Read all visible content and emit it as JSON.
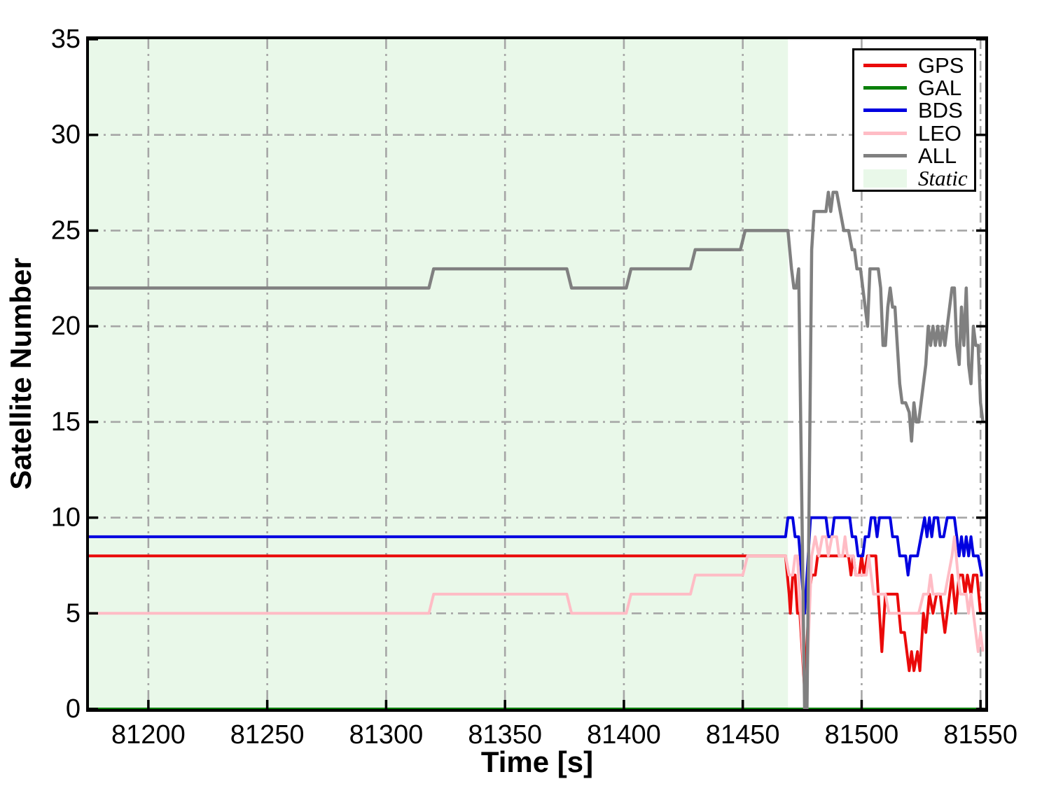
{
  "chart_data": {
    "type": "line",
    "xlabel": "Time [s]",
    "ylabel": "Satellite Number",
    "xlim": [
      81175,
      81552
    ],
    "ylim": [
      0,
      35
    ],
    "xticks": [
      81200,
      81250,
      81300,
      81350,
      81400,
      81450,
      81500,
      81550
    ],
    "yticks": [
      0,
      5,
      10,
      15,
      20,
      25,
      30,
      35
    ],
    "grid": {
      "on": true,
      "style": "dash-dot",
      "color": "#a6a6a6"
    },
    "static_region": {
      "label": "Static",
      "x_start": 81175,
      "x_end": 81469,
      "color": "#e9f8e9"
    },
    "legend_position": "top-right",
    "series": [
      {
        "name": "GPS",
        "color": "#ea0a0a",
        "width": 4,
        "points": [
          [
            81175,
            8
          ],
          [
            81468,
            8
          ],
          [
            81469.5,
            6
          ],
          [
            81470,
            5
          ],
          [
            81471,
            7
          ],
          [
            81472,
            7
          ],
          [
            81473,
            5
          ],
          [
            81474,
            5
          ],
          [
            81476,
            1
          ],
          [
            81478,
            6
          ],
          [
            81479,
            7
          ],
          [
            81480.5,
            7
          ],
          [
            81481.5,
            8
          ],
          [
            81494.5,
            8
          ],
          [
            81495.5,
            7
          ],
          [
            81496.5,
            8
          ],
          [
            81497.5,
            7
          ],
          [
            81499,
            7
          ],
          [
            81500,
            8
          ],
          [
            81501,
            7
          ],
          [
            81502.5,
            8
          ],
          [
            81506,
            8
          ],
          [
            81507.5,
            5
          ],
          [
            81508.5,
            3
          ],
          [
            81510,
            6
          ],
          [
            81515,
            6
          ],
          [
            81516.5,
            4
          ],
          [
            81518,
            4
          ],
          [
            81519,
            3
          ],
          [
            81520,
            2
          ],
          [
            81521,
            3
          ],
          [
            81522,
            2
          ],
          [
            81523.5,
            3
          ],
          [
            81524.5,
            2
          ],
          [
            81526,
            5
          ],
          [
            81527,
            4
          ],
          [
            81528.5,
            6
          ],
          [
            81530,
            5
          ],
          [
            81531.5,
            6
          ],
          [
            81533,
            6
          ],
          [
            81534,
            5
          ],
          [
            81535,
            4
          ],
          [
            81537,
            6
          ],
          [
            81538,
            7
          ],
          [
            81539.5,
            5
          ],
          [
            81541,
            7
          ],
          [
            81542.5,
            7
          ],
          [
            81543.5,
            6
          ],
          [
            81544.5,
            7
          ],
          [
            81546,
            6
          ],
          [
            81547,
            7
          ],
          [
            81548.5,
            7
          ],
          [
            81550,
            5
          ],
          [
            81551,
            5
          ]
        ]
      },
      {
        "name": "GAL",
        "color": "#0a800a",
        "width": 4,
        "points": [
          [
            81175,
            0
          ],
          [
            81551,
            0
          ]
        ]
      },
      {
        "name": "BDS",
        "color": "#0000e0",
        "width": 4,
        "points": [
          [
            81175,
            9
          ],
          [
            81468,
            9
          ],
          [
            81469,
            10
          ],
          [
            81471,
            10
          ],
          [
            81472,
            9
          ],
          [
            81473.5,
            9
          ],
          [
            81476,
            5
          ],
          [
            81478.5,
            10
          ],
          [
            81485,
            10
          ],
          [
            81486,
            9
          ],
          [
            81487.5,
            9
          ],
          [
            81488.5,
            10
          ],
          [
            81495,
            10
          ],
          [
            81496,
            9
          ],
          [
            81497.5,
            9
          ],
          [
            81498.5,
            8
          ],
          [
            81500.5,
            8
          ],
          [
            81501.5,
            9
          ],
          [
            81503,
            9
          ],
          [
            81504,
            10
          ],
          [
            81505.5,
            10
          ],
          [
            81506.5,
            9
          ],
          [
            81507.5,
            10
          ],
          [
            81512,
            10
          ],
          [
            81513,
            9
          ],
          [
            81515,
            9
          ],
          [
            81516,
            8
          ],
          [
            81518.5,
            8
          ],
          [
            81519.5,
            7
          ],
          [
            81520.5,
            8
          ],
          [
            81523.5,
            8
          ],
          [
            81525,
            9
          ],
          [
            81526.5,
            10
          ],
          [
            81527.5,
            9
          ],
          [
            81528.5,
            10
          ],
          [
            81529.5,
            9
          ],
          [
            81530.5,
            10
          ],
          [
            81532,
            10
          ],
          [
            81533,
            9
          ],
          [
            81534.5,
            9
          ],
          [
            81536,
            10
          ],
          [
            81539,
            10
          ],
          [
            81540,
            9
          ],
          [
            81541,
            8
          ],
          [
            81542,
            9
          ],
          [
            81543,
            8
          ],
          [
            81544,
            9
          ],
          [
            81545,
            8
          ],
          [
            81546,
            9
          ],
          [
            81547,
            8
          ],
          [
            81549,
            8
          ],
          [
            81550.5,
            7
          ],
          [
            81551,
            7
          ]
        ]
      },
      {
        "name": "LEO",
        "color": "#ffbcc5",
        "width": 4,
        "points": [
          [
            81175,
            5
          ],
          [
            81318,
            5
          ],
          [
            81320,
            6
          ],
          [
            81376,
            6
          ],
          [
            81378,
            5
          ],
          [
            81401,
            5
          ],
          [
            81403,
            6
          ],
          [
            81428,
            6
          ],
          [
            81430,
            7
          ],
          [
            81450,
            7
          ],
          [
            81452,
            8
          ],
          [
            81468,
            8
          ],
          [
            81469.5,
            7
          ],
          [
            81471,
            7
          ],
          [
            81472,
            8
          ],
          [
            81473,
            8
          ],
          [
            81476.5,
            0
          ],
          [
            81479,
            8
          ],
          [
            81480.5,
            9
          ],
          [
            81482,
            8
          ],
          [
            81483.5,
            9
          ],
          [
            81485,
            9
          ],
          [
            81486,
            8
          ],
          [
            81487.5,
            9
          ],
          [
            81489.5,
            9
          ],
          [
            81490.5,
            8
          ],
          [
            81492,
            8
          ],
          [
            81493,
            9
          ],
          [
            81494,
            8
          ],
          [
            81496.5,
            8
          ],
          [
            81497.5,
            7
          ],
          [
            81502,
            7
          ],
          [
            81503,
            8
          ],
          [
            81504,
            7
          ],
          [
            81505,
            6
          ],
          [
            81510,
            6
          ],
          [
            81511.5,
            5
          ],
          [
            81514,
            5
          ],
          [
            81524,
            5
          ],
          [
            81526,
            6
          ],
          [
            81528,
            6
          ],
          [
            81529,
            7
          ],
          [
            81530,
            6
          ],
          [
            81535,
            6
          ],
          [
            81536.5,
            7
          ],
          [
            81538,
            8
          ],
          [
            81539,
            9
          ],
          [
            81540.5,
            7
          ],
          [
            81541.5,
            6
          ],
          [
            81544,
            6
          ],
          [
            81545,
            5
          ],
          [
            81546,
            6
          ],
          [
            81547,
            5
          ],
          [
            81548,
            4
          ],
          [
            81549,
            3
          ],
          [
            81550,
            4
          ],
          [
            81551,
            3
          ]
        ]
      },
      {
        "name": "ALL",
        "color": "#808080",
        "width": 4.5,
        "points": [
          [
            81175,
            22
          ],
          [
            81318,
            22
          ],
          [
            81320,
            23
          ],
          [
            81376,
            23
          ],
          [
            81378,
            22
          ],
          [
            81401,
            22
          ],
          [
            81403,
            23
          ],
          [
            81428,
            23
          ],
          [
            81430,
            24
          ],
          [
            81449,
            24
          ],
          [
            81451,
            25
          ],
          [
            81469,
            25
          ],
          [
            81470.5,
            23
          ],
          [
            81471.5,
            22
          ],
          [
            81472.5,
            22
          ],
          [
            81473.5,
            23
          ],
          [
            81476,
            0
          ],
          [
            81477,
            0
          ],
          [
            81479,
            24
          ],
          [
            81480,
            26
          ],
          [
            81485,
            26
          ],
          [
            81486,
            27
          ],
          [
            81487,
            26
          ],
          [
            81488,
            27
          ],
          [
            81489.5,
            27
          ],
          [
            81491,
            26
          ],
          [
            81492.5,
            25
          ],
          [
            81494.5,
            25
          ],
          [
            81496,
            24
          ],
          [
            81497,
            24
          ],
          [
            81498,
            23
          ],
          [
            81499.5,
            23
          ],
          [
            81500.5,
            22
          ],
          [
            81501.5,
            21
          ],
          [
            81502.5,
            20
          ],
          [
            81503.5,
            23
          ],
          [
            81506,
            23
          ],
          [
            81507,
            23
          ],
          [
            81508,
            22
          ],
          [
            81509,
            19
          ],
          [
            81510,
            19
          ],
          [
            81511,
            21
          ],
          [
            81512,
            22
          ],
          [
            81513,
            21
          ],
          [
            81514,
            21
          ],
          [
            81515,
            19
          ],
          [
            81516,
            17
          ],
          [
            81517,
            16
          ],
          [
            81518.5,
            16
          ],
          [
            81520,
            15.5
          ],
          [
            81521,
            14
          ],
          [
            81522,
            16
          ],
          [
            81523,
            15
          ],
          [
            81524,
            15
          ],
          [
            81525,
            16
          ],
          [
            81526,
            17
          ],
          [
            81527,
            18
          ],
          [
            81528,
            20
          ],
          [
            81529,
            19
          ],
          [
            81530,
            20
          ],
          [
            81531,
            19
          ],
          [
            81532,
            20
          ],
          [
            81533,
            19
          ],
          [
            81534,
            20
          ],
          [
            81535,
            19
          ],
          [
            81536,
            20
          ],
          [
            81537,
            21
          ],
          [
            81538,
            22
          ],
          [
            81539,
            22
          ],
          [
            81540,
            19
          ],
          [
            81541,
            18
          ],
          [
            81542,
            21
          ],
          [
            81543,
            19
          ],
          [
            81544,
            22
          ],
          [
            81545,
            18
          ],
          [
            81546,
            17
          ],
          [
            81547,
            20
          ],
          [
            81548,
            19
          ],
          [
            81549,
            19
          ],
          [
            81550,
            16
          ],
          [
            81551,
            15
          ]
        ]
      }
    ],
    "legend": [
      {
        "label": "GPS",
        "type": "line",
        "color": "#ea0a0a"
      },
      {
        "label": "GAL",
        "type": "line",
        "color": "#0a800a"
      },
      {
        "label": "BDS",
        "type": "line",
        "color": "#0000e0"
      },
      {
        "label": "LEO",
        "type": "line",
        "color": "#ffbcc5"
      },
      {
        "label": "ALL",
        "type": "line",
        "color": "#808080"
      },
      {
        "label": "Static",
        "type": "patch",
        "color": "#e9f8e9"
      }
    ]
  }
}
